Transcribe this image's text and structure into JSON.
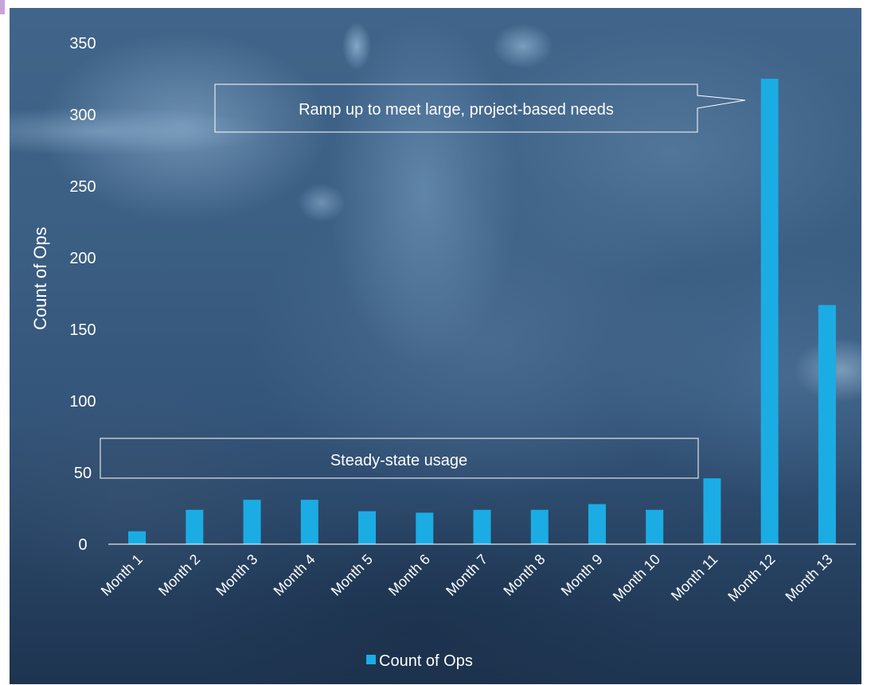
{
  "chart_data": {
    "type": "bar",
    "title": "",
    "xlabel": "",
    "ylabel": "Count of Ops",
    "ylim": [
      0,
      350
    ],
    "yticks": [
      0,
      50,
      100,
      150,
      200,
      250,
      300,
      350
    ],
    "grid": false,
    "legend_position": "bottom",
    "categories": [
      "Month 1",
      "Month 2",
      "Month 3",
      "Month 4",
      "Month 5",
      "Month 6",
      "Month 7",
      "Month 8",
      "Month 9",
      "Month 10",
      "Month 11",
      "Month 12",
      "Month 13"
    ],
    "series": [
      {
        "name": "Count of Ops",
        "color": "#1bace4",
        "values": [
          9,
          24,
          31,
          31,
          23,
          22,
          24,
          24,
          28,
          24,
          46,
          325,
          167
        ]
      }
    ],
    "annotations": [
      {
        "text": "Ramp up to meet large, project-based needs",
        "points_to": "Month 12"
      },
      {
        "text": "Steady-state usage",
        "spans": [
          "Month 1",
          "Month 10"
        ]
      }
    ]
  }
}
